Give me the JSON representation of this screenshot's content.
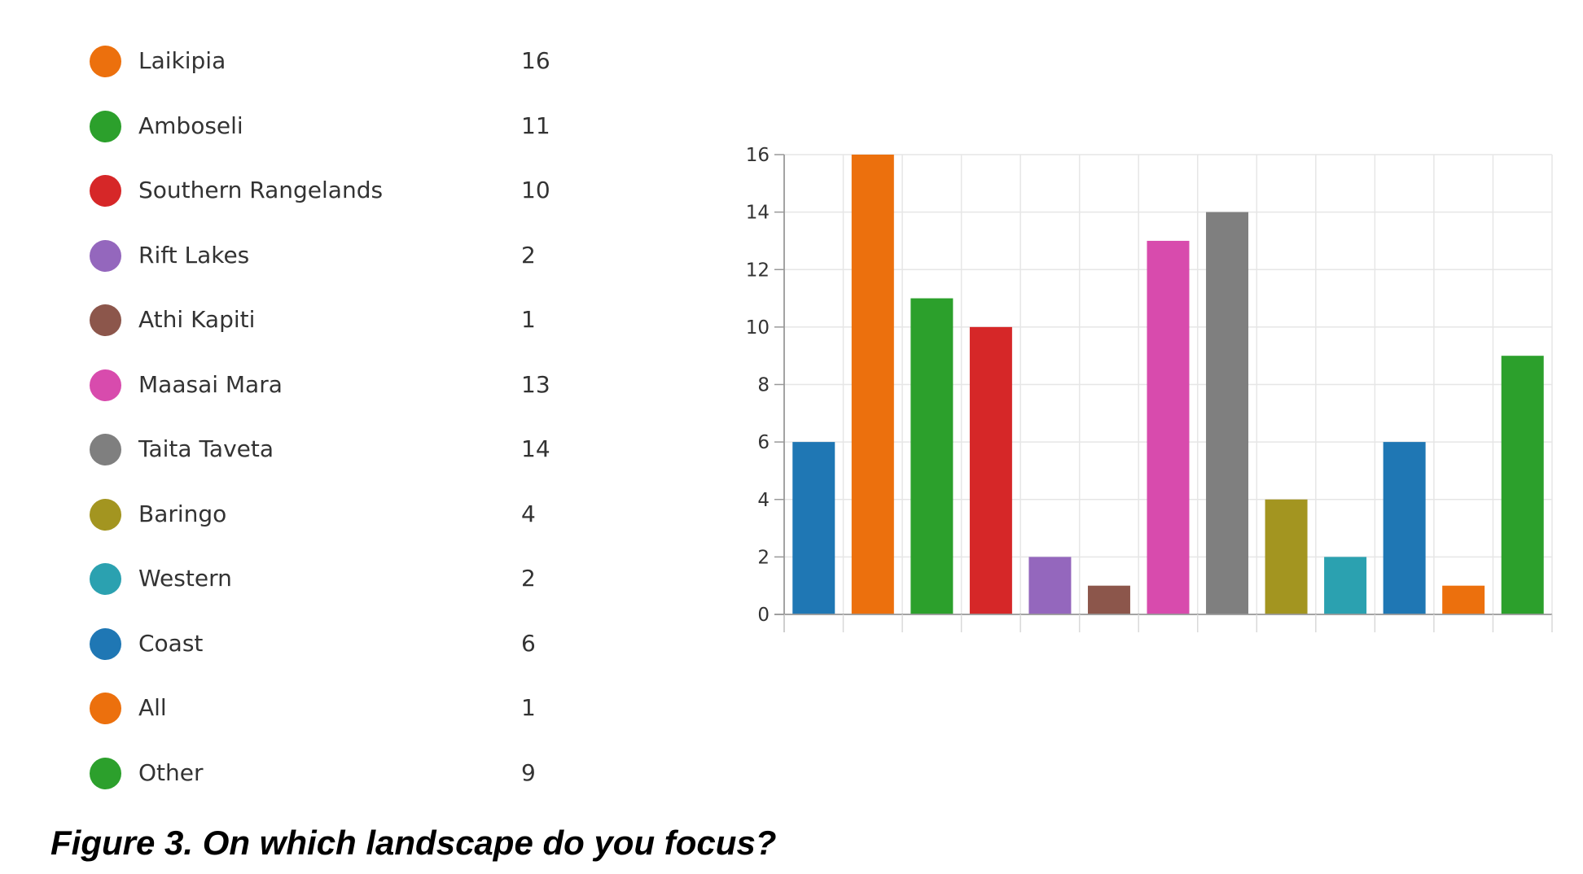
{
  "chart_data": {
    "type": "bar",
    "categories": [
      "Coast",
      "Laikipia",
      "Amboseli",
      "Southern Rangelands",
      "Rift Lakes",
      "Athi Kapiti",
      "Maasai Mara",
      "Taita Taveta",
      "Baringo",
      "Western",
      "Coast",
      "All",
      "Other"
    ],
    "values": [
      6,
      16,
      11,
      10,
      2,
      1,
      13,
      14,
      4,
      2,
      6,
      1,
      9
    ],
    "colors": [
      "#1f77b4",
      "#ec700d",
      "#2ca02c",
      "#d62728",
      "#9467bd",
      "#8c564b",
      "#d84bad",
      "#7f7f7f",
      "#a39520",
      "#2ba1b0",
      "#1f77b4",
      "#ec700d",
      "#2ca02c"
    ],
    "ylim": [
      0,
      16
    ],
    "yticks": [
      0,
      2,
      4,
      6,
      8,
      10,
      12,
      14,
      16
    ],
    "grid": true,
    "legend_position": "left"
  },
  "legend": {
    "items": [
      {
        "label": "Laikipia",
        "count": "16",
        "color": "#ec700d"
      },
      {
        "label": "Amboseli",
        "count": "11",
        "color": "#2ca02c"
      },
      {
        "label": "Southern Rangelands",
        "count": "10",
        "color": "#d62728"
      },
      {
        "label": "Rift Lakes",
        "count": "2",
        "color": "#9467bd"
      },
      {
        "label": "Athi Kapiti",
        "count": "1",
        "color": "#8c564b"
      },
      {
        "label": "Maasai Mara",
        "count": "13",
        "color": "#d84bad"
      },
      {
        "label": "Taita Taveta",
        "count": "14",
        "color": "#7f7f7f"
      },
      {
        "label": "Baringo",
        "count": "4",
        "color": "#a39520"
      },
      {
        "label": "Western",
        "count": "2",
        "color": "#2ba1b0"
      },
      {
        "label": "Coast",
        "count": "6",
        "color": "#1f77b4"
      },
      {
        "label": "All",
        "count": "1",
        "color": "#ec700d"
      },
      {
        "label": "Other",
        "count": "9",
        "color": "#2ca02c"
      }
    ]
  },
  "caption": "Figure 3. On which landscape do you focus?"
}
